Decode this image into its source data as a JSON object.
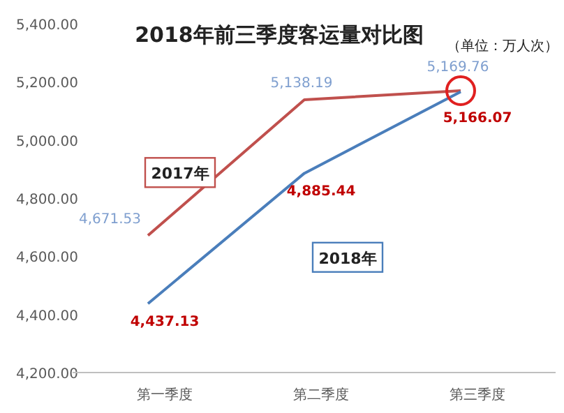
{
  "chart_data": {
    "type": "line",
    "title": "2018年前三季度客运量对比图",
    "subtitle": "（单位：万人次）",
    "categories": [
      "第一季度",
      "第二季度",
      "第三季度"
    ],
    "series": [
      {
        "name": "2017年",
        "color": "#c0504d",
        "values": [
          4671.53,
          5138.19,
          5169.76
        ],
        "value_labels": [
          "4,671.53",
          "5,138.19",
          "5,169.76"
        ]
      },
      {
        "name": "2018年",
        "color": "#4a7ebb",
        "values": [
          4437.13,
          4885.44,
          5166.07
        ],
        "value_labels": [
          "4,437.13",
          "4,885.44",
          "5,166.07"
        ]
      }
    ],
    "ylim": [
      4200,
      5400
    ],
    "yticks": [
      {
        "value": 4200,
        "label": "4,200.00"
      },
      {
        "value": 4400,
        "label": "4,400.00"
      },
      {
        "value": 4600,
        "label": "4,600.00"
      },
      {
        "value": 4800,
        "label": "4,800.00"
      },
      {
        "value": 5000,
        "label": "5,000.00"
      },
      {
        "value": 5200,
        "label": "5,200.00"
      },
      {
        "value": 5400,
        "label": "5,400.00"
      }
    ],
    "grid": false,
    "legend": false,
    "marker": "none",
    "line_style": "solid"
  }
}
